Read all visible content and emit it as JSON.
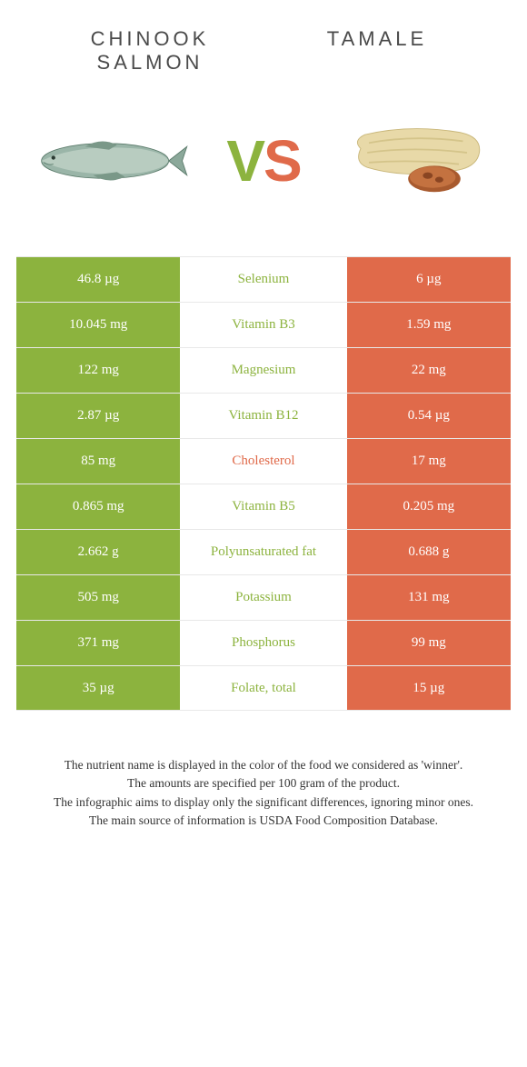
{
  "header": {
    "left_title": "Chinook salmon",
    "right_title": "Tamale"
  },
  "vs": {
    "v": "V",
    "s": "S"
  },
  "colors": {
    "green": "#8cb33e",
    "orange": "#e06a4a",
    "row_border": "#e8e8e8",
    "text_dark": "#4a4a4a"
  },
  "rows": [
    {
      "left": "46.8 µg",
      "mid": "Selenium",
      "right": "6 µg",
      "mid_color": "green"
    },
    {
      "left": "10.045 mg",
      "mid": "Vitamin B3",
      "right": "1.59 mg",
      "mid_color": "green"
    },
    {
      "left": "122 mg",
      "mid": "Magnesium",
      "right": "22 mg",
      "mid_color": "green"
    },
    {
      "left": "2.87 µg",
      "mid": "Vitamin B12",
      "right": "0.54 µg",
      "mid_color": "green"
    },
    {
      "left": "85 mg",
      "mid": "Cholesterol",
      "right": "17 mg",
      "mid_color": "orange"
    },
    {
      "left": "0.865 mg",
      "mid": "Vitamin B5",
      "right": "0.205 mg",
      "mid_color": "green"
    },
    {
      "left": "2.662 g",
      "mid": "Polyunsaturated fat",
      "right": "0.688 g",
      "mid_color": "green"
    },
    {
      "left": "505 mg",
      "mid": "Potassium",
      "right": "131 mg",
      "mid_color": "green"
    },
    {
      "left": "371 mg",
      "mid": "Phosphorus",
      "right": "99 mg",
      "mid_color": "green"
    },
    {
      "left": "35 µg",
      "mid": "Folate, total",
      "right": "15 µg",
      "mid_color": "green"
    }
  ],
  "footer": {
    "line1": "The nutrient name is displayed in the color of the food we considered as 'winner'.",
    "line2": "The amounts are specified per 100 gram of the product.",
    "line3": "The infographic aims to display only the significant differences, ignoring minor ones.",
    "line4": "The main source of information is USDA Food Composition Database."
  }
}
